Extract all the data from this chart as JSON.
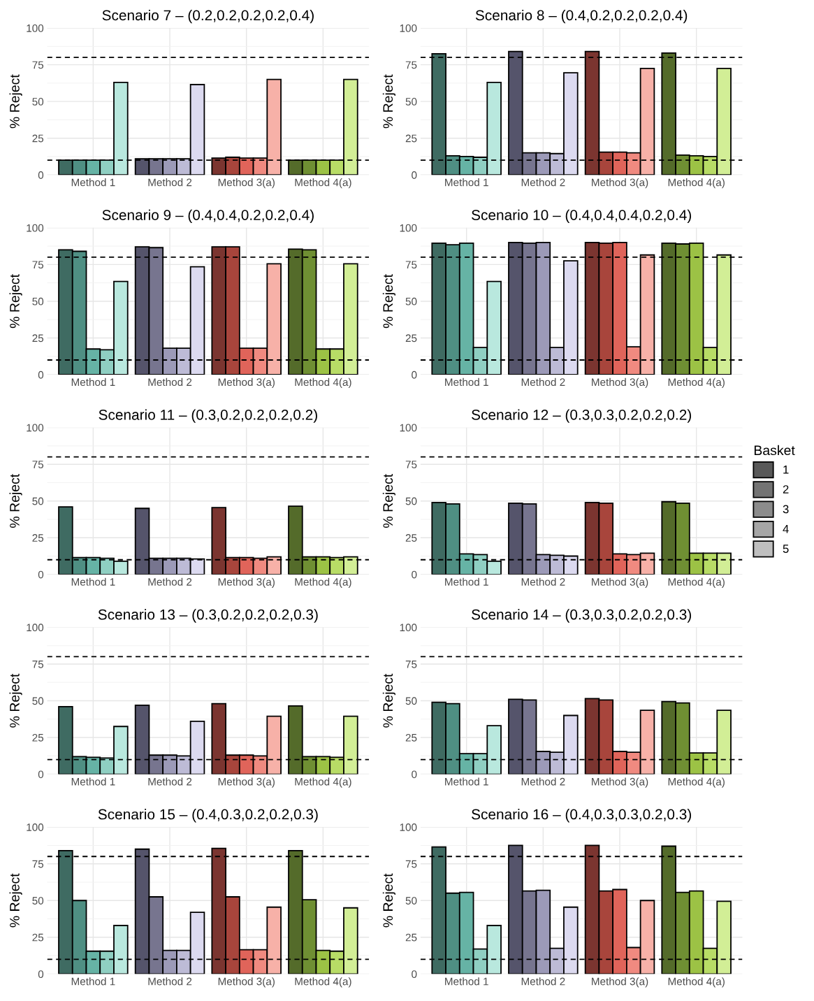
{
  "chart_data": [
    {
      "type": "bar",
      "title": "Scenario 7 – (0.2,0.2,0.2,0.2,0.4)",
      "ylabel": "% Reject",
      "categories": [
        "Method 1",
        "Method 2",
        "Method 3(a)",
        "Method 4(a)"
      ],
      "ylim": [
        0,
        100
      ],
      "yticks": [
        0,
        25,
        50,
        75,
        100
      ],
      "grid": true,
      "ref_lines": [
        {
          "axis": "y",
          "value": 10,
          "line_style": "dashed",
          "color": "#000000"
        },
        {
          "axis": "y",
          "value": 80,
          "line_style": "dashed",
          "color": "#000000"
        }
      ],
      "series": [
        {
          "colors": [
            "#3f6b62",
            "#55546b",
            "#7b3530",
            "#546b2a"
          ],
          "values": [
            10,
            11,
            11.5,
            10
          ]
        },
        {
          "colors": [
            "#4f8f83",
            "#77758f",
            "#a8453c",
            "#6f8f33"
          ],
          "values": [
            10,
            11,
            12,
            10
          ]
        },
        {
          "colors": [
            "#66b3a5",
            "#9c9ab8",
            "#e0645a",
            "#9cc245"
          ],
          "values": [
            10,
            11,
            11.5,
            10
          ]
        },
        {
          "colors": [
            "#8fcfc2",
            "#bdbbd6",
            "#f08a80",
            "#b8dc66"
          ],
          "values": [
            10,
            11,
            11.5,
            10
          ]
        },
        {
          "colors": [
            "#b9e8de",
            "#dcdaf0",
            "#f7b1a8",
            "#d2ee96"
          ],
          "values": [
            63,
            61.5,
            65,
            65
          ]
        }
      ]
    },
    {
      "type": "bar",
      "title": "Scenario 8 – (0.4,0.2,0.2,0.2,0.4)",
      "ylabel": "% Reject",
      "categories": [
        "Method 1",
        "Method 2",
        "Method 3(a)",
        "Method 4(a)"
      ],
      "ylim": [
        0,
        100
      ],
      "yticks": [
        0,
        25,
        50,
        75,
        100
      ],
      "grid": true,
      "ref_lines": [
        {
          "axis": "y",
          "value": 10,
          "line_style": "dashed",
          "color": "#000000"
        },
        {
          "axis": "y",
          "value": 80,
          "line_style": "dashed",
          "color": "#000000"
        }
      ],
      "series": [
        {
          "colors": [
            "#3f6b62",
            "#55546b",
            "#7b3530",
            "#546b2a"
          ],
          "values": [
            82.5,
            84,
            84,
            83
          ]
        },
        {
          "colors": [
            "#4f8f83",
            "#77758f",
            "#a8453c",
            "#6f8f33"
          ],
          "values": [
            13,
            15,
            15.5,
            13.5
          ]
        },
        {
          "colors": [
            "#66b3a5",
            "#9c9ab8",
            "#e0645a",
            "#9cc245"
          ],
          "values": [
            12.5,
            15,
            15.5,
            13
          ]
        },
        {
          "colors": [
            "#8fcfc2",
            "#bdbbd6",
            "#f08a80",
            "#b8dc66"
          ],
          "values": [
            12,
            14.5,
            15,
            12.5
          ]
        },
        {
          "colors": [
            "#b9e8de",
            "#dcdaf0",
            "#f7b1a8",
            "#d2ee96"
          ],
          "values": [
            63,
            69.5,
            72.5,
            72.5
          ]
        }
      ]
    },
    {
      "type": "bar",
      "title": "Scenario 9 – (0.4,0.4,0.2,0.2,0.4)",
      "ylabel": "% Reject",
      "categories": [
        "Method 1",
        "Method 2",
        "Method 3(a)",
        "Method 4(a)"
      ],
      "ylim": [
        0,
        100
      ],
      "yticks": [
        0,
        25,
        50,
        75,
        100
      ],
      "grid": true,
      "ref_lines": [
        {
          "axis": "y",
          "value": 10,
          "line_style": "dashed",
          "color": "#000000"
        },
        {
          "axis": "y",
          "value": 80,
          "line_style": "dashed",
          "color": "#000000"
        }
      ],
      "series": [
        {
          "colors": [
            "#3f6b62",
            "#55546b",
            "#7b3530",
            "#546b2a"
          ],
          "values": [
            85,
            87,
            87,
            85.5
          ]
        },
        {
          "colors": [
            "#4f8f83",
            "#77758f",
            "#a8453c",
            "#6f8f33"
          ],
          "values": [
            84,
            86.5,
            87,
            85
          ]
        },
        {
          "colors": [
            "#66b3a5",
            "#9c9ab8",
            "#e0645a",
            "#9cc245"
          ],
          "values": [
            17.5,
            18,
            18,
            17.5
          ]
        },
        {
          "colors": [
            "#8fcfc2",
            "#bdbbd6",
            "#f08a80",
            "#b8dc66"
          ],
          "values": [
            17,
            18,
            18,
            17.5
          ]
        },
        {
          "colors": [
            "#b9e8de",
            "#dcdaf0",
            "#f7b1a8",
            "#d2ee96"
          ],
          "values": [
            63.5,
            73.5,
            75.5,
            75.5
          ]
        }
      ]
    },
    {
      "type": "bar",
      "title": "Scenario 10 – (0.4,0.4,0.4,0.2,0.4)",
      "ylabel": "% Reject",
      "categories": [
        "Method 1",
        "Method 2",
        "Method 3(a)",
        "Method 4(a)"
      ],
      "ylim": [
        0,
        100
      ],
      "yticks": [
        0,
        25,
        50,
        75,
        100
      ],
      "grid": true,
      "ref_lines": [
        {
          "axis": "y",
          "value": 10,
          "line_style": "dashed",
          "color": "#000000"
        },
        {
          "axis": "y",
          "value": 80,
          "line_style": "dashed",
          "color": "#000000"
        }
      ],
      "series": [
        {
          "colors": [
            "#3f6b62",
            "#55546b",
            "#7b3530",
            "#546b2a"
          ],
          "values": [
            89.5,
            90,
            90,
            89.5
          ]
        },
        {
          "colors": [
            "#4f8f83",
            "#77758f",
            "#a8453c",
            "#6f8f33"
          ],
          "values": [
            88.5,
            89.5,
            89.5,
            89
          ]
        },
        {
          "colors": [
            "#66b3a5",
            "#9c9ab8",
            "#e0645a",
            "#9cc245"
          ],
          "values": [
            89.5,
            90,
            90,
            89.5
          ]
        },
        {
          "colors": [
            "#8fcfc2",
            "#bdbbd6",
            "#f08a80",
            "#b8dc66"
          ],
          "values": [
            18.5,
            18.5,
            19,
            18.5
          ]
        },
        {
          "colors": [
            "#b9e8de",
            "#dcdaf0",
            "#f7b1a8",
            "#d2ee96"
          ],
          "values": [
            63.5,
            77.5,
            81.5,
            81.5
          ]
        }
      ]
    },
    {
      "type": "bar",
      "title": "Scenario 11 – (0.3,0.2,0.2,0.2,0.2)",
      "ylabel": "% Reject",
      "categories": [
        "Method 1",
        "Method 2",
        "Method 3(a)",
        "Method 4(a)"
      ],
      "ylim": [
        0,
        100
      ],
      "yticks": [
        0,
        25,
        50,
        75,
        100
      ],
      "grid": true,
      "ref_lines": [
        {
          "axis": "y",
          "value": 10,
          "line_style": "dashed",
          "color": "#000000"
        },
        {
          "axis": "y",
          "value": 80,
          "line_style": "dashed",
          "color": "#000000"
        }
      ],
      "series": [
        {
          "colors": [
            "#3f6b62",
            "#55546b",
            "#7b3530",
            "#546b2a"
          ],
          "values": [
            46,
            45,
            45.5,
            46.5
          ]
        },
        {
          "colors": [
            "#4f8f83",
            "#77758f",
            "#a8453c",
            "#6f8f33"
          ],
          "values": [
            11.5,
            11,
            11.5,
            12
          ]
        },
        {
          "colors": [
            "#66b3a5",
            "#9c9ab8",
            "#e0645a",
            "#9cc245"
          ],
          "values": [
            11.5,
            11,
            11.5,
            12
          ]
        },
        {
          "colors": [
            "#8fcfc2",
            "#bdbbd6",
            "#f08a80",
            "#b8dc66"
          ],
          "values": [
            11,
            11,
            11,
            11.5
          ]
        },
        {
          "colors": [
            "#b9e8de",
            "#dcdaf0",
            "#f7b1a8",
            "#d2ee96"
          ],
          "values": [
            9,
            10.5,
            12,
            12
          ]
        }
      ]
    },
    {
      "type": "bar",
      "title": "Scenario 12 – (0.3,0.3,0.2,0.2,0.2)",
      "ylabel": "% Reject",
      "categories": [
        "Method 1",
        "Method 2",
        "Method 3(a)",
        "Method 4(a)"
      ],
      "ylim": [
        0,
        100
      ],
      "yticks": [
        0,
        25,
        50,
        75,
        100
      ],
      "grid": true,
      "legend": "right",
      "legend_title": "Basket",
      "ref_lines": [
        {
          "axis": "y",
          "value": 10,
          "line_style": "dashed",
          "color": "#000000"
        },
        {
          "axis": "y",
          "value": 80,
          "line_style": "dashed",
          "color": "#000000"
        }
      ],
      "series": [
        {
          "name": "1",
          "color": "#595959",
          "colors": [
            "#3f6b62",
            "#55546b",
            "#7b3530",
            "#546b2a"
          ],
          "values": [
            49,
            48.5,
            49,
            49.5
          ]
        },
        {
          "name": "2",
          "color": "#737373",
          "colors": [
            "#4f8f83",
            "#77758f",
            "#a8453c",
            "#6f8f33"
          ],
          "values": [
            48,
            48,
            48.5,
            48.5
          ]
        },
        {
          "name": "3",
          "color": "#8c8c8c",
          "colors": [
            "#66b3a5",
            "#9c9ab8",
            "#e0645a",
            "#9cc245"
          ],
          "values": [
            14,
            13.5,
            14,
            14.5
          ]
        },
        {
          "name": "4",
          "color": "#a6a6a6",
          "colors": [
            "#8fcfc2",
            "#bdbbd6",
            "#f08a80",
            "#b8dc66"
          ],
          "values": [
            13.5,
            13,
            13.5,
            14.5
          ]
        },
        {
          "name": "5",
          "color": "#bfbfbf",
          "colors": [
            "#b9e8de",
            "#dcdaf0",
            "#f7b1a8",
            "#d2ee96"
          ],
          "values": [
            9,
            12.5,
            14.5,
            14.5
          ]
        }
      ]
    },
    {
      "type": "bar",
      "title": "Scenario 13 – (0.3,0.2,0.2,0.2,0.3)",
      "ylabel": "% Reject",
      "categories": [
        "Method 1",
        "Method 2",
        "Method 3(a)",
        "Method 4(a)"
      ],
      "ylim": [
        0,
        100
      ],
      "yticks": [
        0,
        25,
        50,
        75,
        100
      ],
      "grid": true,
      "ref_lines": [
        {
          "axis": "y",
          "value": 10,
          "line_style": "dashed",
          "color": "#000000"
        },
        {
          "axis": "y",
          "value": 80,
          "line_style": "dashed",
          "color": "#000000"
        }
      ],
      "series": [
        {
          "colors": [
            "#3f6b62",
            "#55546b",
            "#7b3530",
            "#546b2a"
          ],
          "values": [
            46,
            47,
            48,
            46.5
          ]
        },
        {
          "colors": [
            "#4f8f83",
            "#77758f",
            "#a8453c",
            "#6f8f33"
          ],
          "values": [
            12,
            13,
            13,
            12
          ]
        },
        {
          "colors": [
            "#66b3a5",
            "#9c9ab8",
            "#e0645a",
            "#9cc245"
          ],
          "values": [
            11.5,
            13,
            13,
            12
          ]
        },
        {
          "colors": [
            "#8fcfc2",
            "#bdbbd6",
            "#f08a80",
            "#b8dc66"
          ],
          "values": [
            11,
            12.5,
            12.5,
            11.5
          ]
        },
        {
          "colors": [
            "#b9e8de",
            "#dcdaf0",
            "#f7b1a8",
            "#d2ee96"
          ],
          "values": [
            32.5,
            36,
            39.5,
            39.5
          ]
        }
      ]
    },
    {
      "type": "bar",
      "title": "Scenario 14 – (0.3,0.3,0.2,0.2,0.3)",
      "ylabel": "% Reject",
      "categories": [
        "Method 1",
        "Method 2",
        "Method 3(a)",
        "Method 4(a)"
      ],
      "ylim": [
        0,
        100
      ],
      "yticks": [
        0,
        25,
        50,
        75,
        100
      ],
      "grid": true,
      "ref_lines": [
        {
          "axis": "y",
          "value": 10,
          "line_style": "dashed",
          "color": "#000000"
        },
        {
          "axis": "y",
          "value": 80,
          "line_style": "dashed",
          "color": "#000000"
        }
      ],
      "series": [
        {
          "colors": [
            "#3f6b62",
            "#55546b",
            "#7b3530",
            "#546b2a"
          ],
          "values": [
            49,
            51,
            51.5,
            49.5
          ]
        },
        {
          "colors": [
            "#4f8f83",
            "#77758f",
            "#a8453c",
            "#6f8f33"
          ],
          "values": [
            48,
            50.5,
            50.5,
            48.5
          ]
        },
        {
          "colors": [
            "#66b3a5",
            "#9c9ab8",
            "#e0645a",
            "#9cc245"
          ],
          "values": [
            14,
            15.5,
            15.5,
            14.5
          ]
        },
        {
          "colors": [
            "#8fcfc2",
            "#bdbbd6",
            "#f08a80",
            "#b8dc66"
          ],
          "values": [
            14,
            15,
            15,
            14.5
          ]
        },
        {
          "colors": [
            "#b9e8de",
            "#dcdaf0",
            "#f7b1a8",
            "#d2ee96"
          ],
          "values": [
            33,
            40,
            43.5,
            43.5
          ]
        }
      ]
    },
    {
      "type": "bar",
      "title": "Scenario 15 – (0.4,0.3,0.2,0.2,0.3)",
      "ylabel": "% Reject",
      "categories": [
        "Method 1",
        "Method 2",
        "Method 3(a)",
        "Method 4(a)"
      ],
      "ylim": [
        0,
        100
      ],
      "yticks": [
        0,
        25,
        50,
        75,
        100
      ],
      "grid": true,
      "ref_lines": [
        {
          "axis": "y",
          "value": 10,
          "line_style": "dashed",
          "color": "#000000"
        },
        {
          "axis": "y",
          "value": 80,
          "line_style": "dashed",
          "color": "#000000"
        }
      ],
      "series": [
        {
          "colors": [
            "#3f6b62",
            "#55546b",
            "#7b3530",
            "#546b2a"
          ],
          "values": [
            84,
            85,
            85.5,
            84
          ]
        },
        {
          "colors": [
            "#4f8f83",
            "#77758f",
            "#a8453c",
            "#6f8f33"
          ],
          "values": [
            50,
            52.5,
            52.5,
            50.5
          ]
        },
        {
          "colors": [
            "#66b3a5",
            "#9c9ab8",
            "#e0645a",
            "#9cc245"
          ],
          "values": [
            15.5,
            16,
            16.5,
            16
          ]
        },
        {
          "colors": [
            "#8fcfc2",
            "#bdbbd6",
            "#f08a80",
            "#b8dc66"
          ],
          "values": [
            15.5,
            16,
            16.5,
            15.5
          ]
        },
        {
          "colors": [
            "#b9e8de",
            "#dcdaf0",
            "#f7b1a8",
            "#d2ee96"
          ],
          "values": [
            33,
            42,
            45.5,
            45
          ]
        }
      ]
    },
    {
      "type": "bar",
      "title": "Scenario 16 – (0.4,0.3,0.3,0.2,0.3)",
      "ylabel": "% Reject",
      "categories": [
        "Method 1",
        "Method 2",
        "Method 3(a)",
        "Method 4(a)"
      ],
      "ylim": [
        0,
        100
      ],
      "yticks": [
        0,
        25,
        50,
        75,
        100
      ],
      "grid": true,
      "ref_lines": [
        {
          "axis": "y",
          "value": 10,
          "line_style": "dashed",
          "color": "#000000"
        },
        {
          "axis": "y",
          "value": 80,
          "line_style": "dashed",
          "color": "#000000"
        }
      ],
      "series": [
        {
          "colors": [
            "#3f6b62",
            "#55546b",
            "#7b3530",
            "#546b2a"
          ],
          "values": [
            86.5,
            87.5,
            87.5,
            87
          ]
        },
        {
          "colors": [
            "#4f8f83",
            "#77758f",
            "#a8453c",
            "#6f8f33"
          ],
          "values": [
            55,
            56.5,
            56.5,
            55.5
          ]
        },
        {
          "colors": [
            "#66b3a5",
            "#9c9ab8",
            "#e0645a",
            "#9cc245"
          ],
          "values": [
            55.5,
            57,
            57.5,
            56.5
          ]
        },
        {
          "colors": [
            "#8fcfc2",
            "#bdbbd6",
            "#f08a80",
            "#b8dc66"
          ],
          "values": [
            17,
            17.5,
            18,
            17.5
          ]
        },
        {
          "colors": [
            "#b9e8de",
            "#dcdaf0",
            "#f7b1a8",
            "#d2ee96"
          ],
          "values": [
            33,
            45.5,
            50,
            49.5
          ]
        }
      ]
    }
  ]
}
